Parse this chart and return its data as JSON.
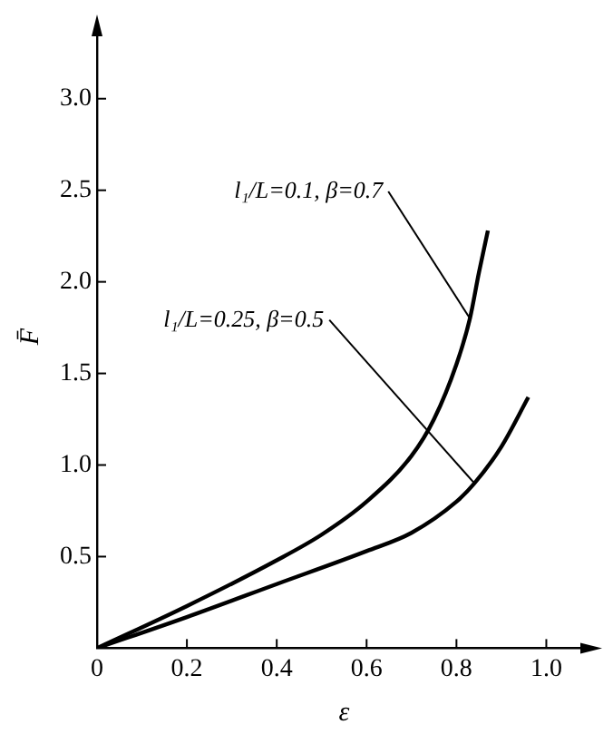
{
  "chart_data": {
    "type": "line",
    "xlabel": "ε",
    "ylabel": "F̄",
    "xlim": [
      0,
      1.1
    ],
    "ylim": [
      0,
      3.4
    ],
    "xticks": [
      0,
      0.2,
      0.4,
      0.6,
      0.8,
      {
        "value": 1,
        "label": "1.0"
      }
    ],
    "yticks": [
      0.5,
      {
        "value": 1,
        "label": "1.0"
      },
      1.5,
      {
        "value": 2,
        "label": "2.0"
      },
      2.5,
      {
        "value": 3,
        "label": "3.0"
      }
    ],
    "grid": false,
    "legend": false,
    "marker": "none",
    "line_style": "solid",
    "series": [
      {
        "name": "l₁/L=0.1, β=0.7",
        "color": "#000000",
        "x": [
          0,
          0.2,
          0.4,
          0.5,
          0.6,
          0.7,
          0.75,
          0.8,
          0.83,
          0.85,
          0.87
        ],
        "values": [
          0,
          0.23,
          0.48,
          0.62,
          0.8,
          1.05,
          1.25,
          1.55,
          1.8,
          2.05,
          2.28
        ]
      },
      {
        "name": "l₁/L=0.25, β=0.5",
        "color": "#000000",
        "x": [
          0,
          0.2,
          0.4,
          0.6,
          0.7,
          0.8,
          0.84,
          0.9,
          0.96
        ],
        "values": [
          0,
          0.17,
          0.35,
          0.53,
          0.63,
          0.8,
          0.9,
          1.1,
          1.37
        ]
      }
    ]
  }
}
